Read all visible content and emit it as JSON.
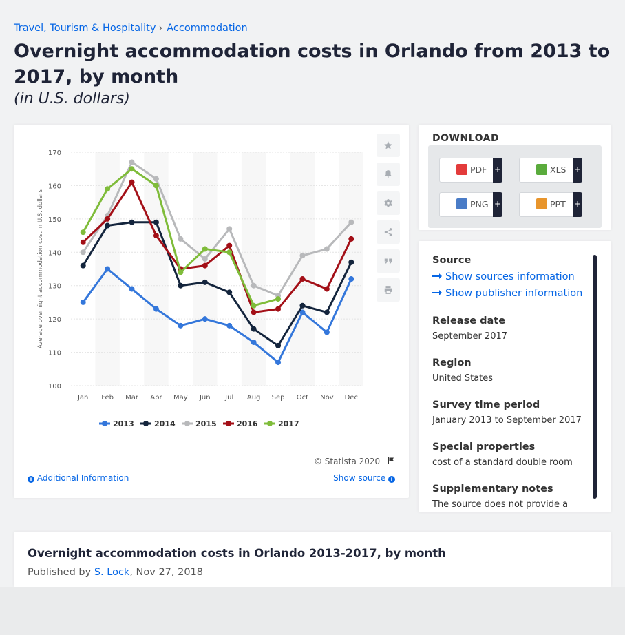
{
  "breadcrumb": {
    "items": [
      "Travel, Tourism & Hospitality",
      "Accommodation"
    ],
    "separator": "›"
  },
  "header": {
    "title": "Overnight accommodation costs in Orlando from 2013 to 2017, by month",
    "subtitle": "(in U.S. dollars)"
  },
  "chart_data": {
    "type": "line",
    "categories": [
      "Jan",
      "Feb",
      "Mar",
      "Apr",
      "May",
      "Jun",
      "Jul",
      "Aug",
      "Sep",
      "Oct",
      "Nov",
      "Dec"
    ],
    "ylabel": "Average overnight accommodation cost in U.S. dollars",
    "xlabel": "",
    "ylim": [
      100,
      170
    ],
    "yticks": [
      100,
      110,
      120,
      130,
      140,
      150,
      160,
      170
    ],
    "grid": true,
    "legend": "bottom",
    "series": [
      {
        "name": "2013",
        "color": "#3477db",
        "values": [
          125,
          135,
          129,
          123,
          118,
          120,
          118,
          113,
          107,
          122,
          116,
          132
        ]
      },
      {
        "name": "2014",
        "color": "#14253d",
        "values": [
          136,
          148,
          149,
          149,
          130,
          131,
          128,
          117,
          112,
          124,
          122,
          137
        ]
      },
      {
        "name": "2015",
        "color": "#b8b9bb",
        "values": [
          140,
          151,
          167,
          162,
          144,
          138,
          147,
          130,
          127,
          139,
          141,
          149
        ]
      },
      {
        "name": "2016",
        "color": "#a30f17",
        "values": [
          143,
          150,
          161,
          145,
          135,
          136,
          142,
          122,
          123,
          132,
          129,
          144
        ]
      },
      {
        "name": "2017",
        "color": "#7fbc3a",
        "values": [
          146,
          159,
          165,
          160,
          134,
          141,
          140,
          124,
          126,
          null,
          null,
          null
        ]
      }
    ]
  },
  "chart_footer": {
    "copyright": "© Statista 2020",
    "additional_info": "Additional Information",
    "show_source": "Show source"
  },
  "tools": [
    "star-icon",
    "bell-icon",
    "gear-icon",
    "share-icon",
    "quote-icon",
    "print-icon"
  ],
  "download": {
    "title": "DOWNLOAD",
    "buttons": [
      {
        "label": "PDF",
        "color": "#e33b3b"
      },
      {
        "label": "XLS",
        "color": "#5aab3c"
      },
      {
        "label": "PNG",
        "color": "#4a7cc7"
      },
      {
        "label": "PPT",
        "color": "#e8952c"
      }
    ],
    "plus": "+"
  },
  "info": {
    "source_label": "Source",
    "show_sources": "Show sources information",
    "show_publisher": "Show publisher information",
    "release_label": "Release date",
    "release_value": "September 2017",
    "region_label": "Region",
    "region_value": "United States",
    "period_label": "Survey time period",
    "period_value": "January 2013 to September 2017",
    "special_label": "Special properties",
    "special_value": "cost of a standard double room",
    "supp_label": "Supplementary notes",
    "supp_value": "The source does not provide a publication date. The publication"
  },
  "bottom": {
    "title": "Overnight accommodation costs in Orlando 2013-2017, by month",
    "published_prefix": "Published by",
    "author": "S. Lock",
    "date": ", Nov 27, 2018"
  }
}
